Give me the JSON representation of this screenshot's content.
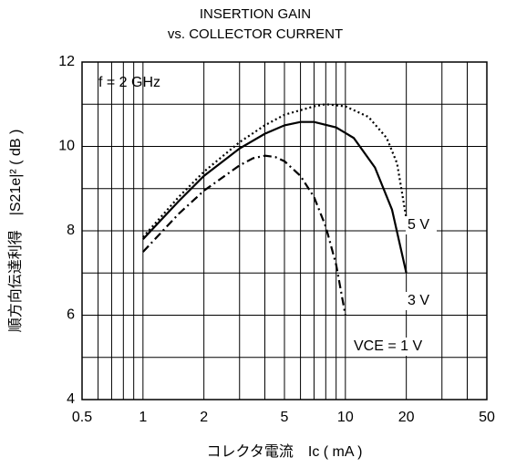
{
  "chart_data": {
    "type": "line",
    "title": "INSERTION GAIN",
    "subtitle": "vs. COLLECTOR CURRENT",
    "xlabel": "コレクタ電流　Ic ( mA )",
    "ylabel": "順方向伝達利得　|S21e|² ( dB )",
    "annotations": [
      "f = 2 GHz"
    ],
    "xscale": "log",
    "xlim": [
      0.5,
      50
    ],
    "xticks": [
      0.5,
      1,
      2,
      5,
      10,
      20,
      50
    ],
    "xminor": [
      0.6,
      0.7,
      0.8,
      0.9,
      3,
      4,
      6,
      7,
      8,
      9,
      30,
      40
    ],
    "ylim": [
      4,
      12
    ],
    "yticks": [
      4,
      6,
      8,
      10,
      12
    ],
    "yminor": [
      5,
      7,
      9,
      11
    ],
    "grid": true,
    "series": [
      {
        "name": "5 V",
        "color": "#000000",
        "dash": "dot",
        "x": [
          1,
          1.5,
          2,
          3,
          4,
          5,
          7,
          8,
          10,
          13,
          16,
          18,
          20
        ],
        "values": [
          7.85,
          8.8,
          9.4,
          10.1,
          10.5,
          10.75,
          10.95,
          11.0,
          10.95,
          10.7,
          10.2,
          9.6,
          8.3
        ]
      },
      {
        "name": "3 V",
        "color": "#000000",
        "dash": "solid",
        "x": [
          1,
          1.5,
          2,
          3,
          4,
          5,
          6,
          7,
          9,
          11,
          14,
          17,
          20
        ],
        "values": [
          7.8,
          8.7,
          9.3,
          9.95,
          10.3,
          10.5,
          10.58,
          10.58,
          10.45,
          10.2,
          9.5,
          8.5,
          7.0
        ]
      },
      {
        "name": "VCE = 1 V",
        "color": "#000000",
        "dash": "dashdot",
        "x": [
          1,
          1.5,
          2,
          3,
          3.5,
          4,
          4.5,
          5,
          6,
          7,
          8,
          9,
          10
        ],
        "values": [
          7.5,
          8.4,
          8.95,
          9.55,
          9.72,
          9.78,
          9.75,
          9.65,
          9.3,
          8.8,
          8.1,
          7.2,
          6.0
        ]
      }
    ]
  }
}
